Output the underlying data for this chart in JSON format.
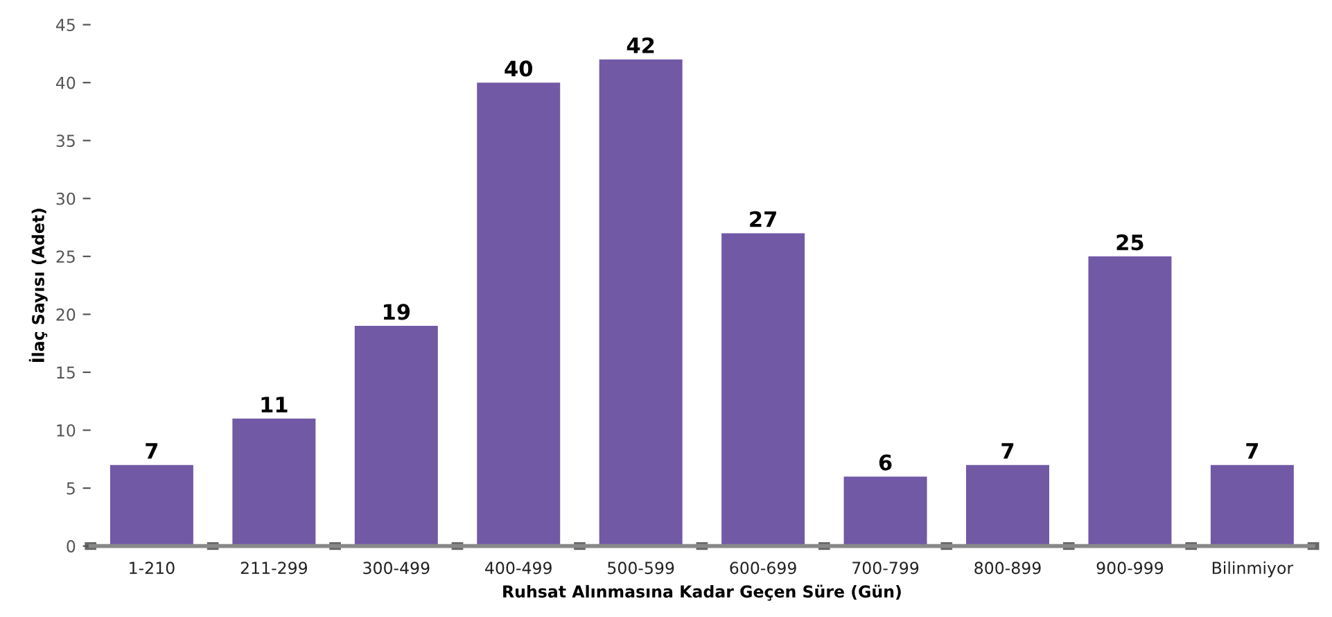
{
  "chart_data": {
    "type": "bar",
    "xlabel": "Ruhsat Alınmasına Kadar Geçen Süre (Gün)",
    "ylabel": "İlaç Sayısı (Adet)",
    "categories": [
      "1-210",
      "211-299",
      "300-499",
      "400-499",
      "500-599",
      "600-699",
      "700-799",
      "800-899",
      "900-999",
      "Bilinmiyor"
    ],
    "values": [
      7,
      11,
      19,
      40,
      42,
      27,
      6,
      7,
      25,
      7
    ],
    "color": "#7159a6",
    "data_labels": true,
    "ylim": [
      0,
      45
    ],
    "yticks": [
      0,
      5,
      10,
      15,
      20,
      25,
      30,
      35,
      40,
      45
    ],
    "grid": false,
    "legend": false
  }
}
